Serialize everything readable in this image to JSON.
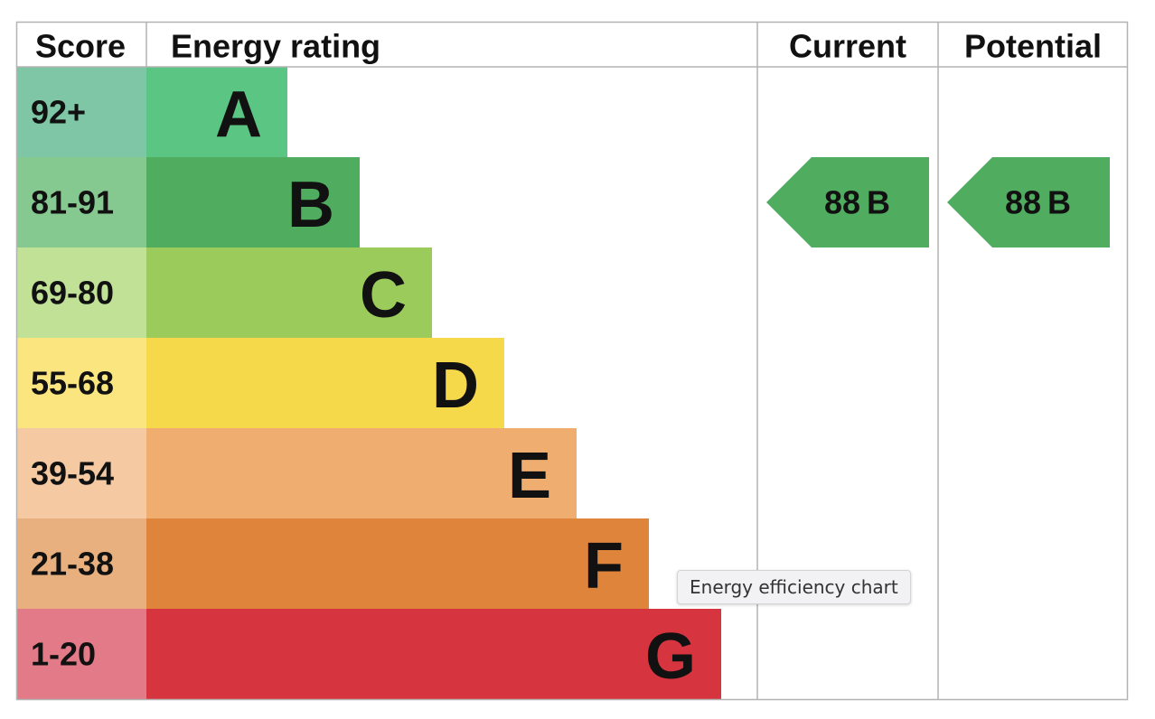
{
  "tooltip": "Energy efficiency chart",
  "chart_data": {
    "type": "bar",
    "headers": {
      "score": "Score",
      "rating": "Energy rating",
      "current": "Current",
      "potential": "Potential"
    },
    "bands": [
      {
        "label": "A",
        "score": "92+",
        "color": "#5bc584",
        "score_color": "#7ec6a6"
      },
      {
        "label": "B",
        "score": "81-91",
        "color": "#50ad60",
        "score_color": "#86c990"
      },
      {
        "label": "C",
        "score": "69-80",
        "color": "#9bcb5a",
        "score_color": "#c1e196"
      },
      {
        "label": "D",
        "score": "55-68",
        "color": "#f6d84b",
        "score_color": "#fbe57f"
      },
      {
        "label": "E",
        "score": "39-54",
        "color": "#f0ad70",
        "score_color": "#f5c9a2"
      },
      {
        "label": "F",
        "score": "21-38",
        "color": "#df843b",
        "score_color": "#e9b07f"
      },
      {
        "label": "G",
        "score": "1-20",
        "color": "#d63540",
        "score_color": "#e37a87"
      }
    ],
    "current": {
      "value": 88,
      "band": "B",
      "color": "#50ad60"
    },
    "potential": {
      "value": 88,
      "band": "B",
      "color": "#50ad60"
    }
  }
}
